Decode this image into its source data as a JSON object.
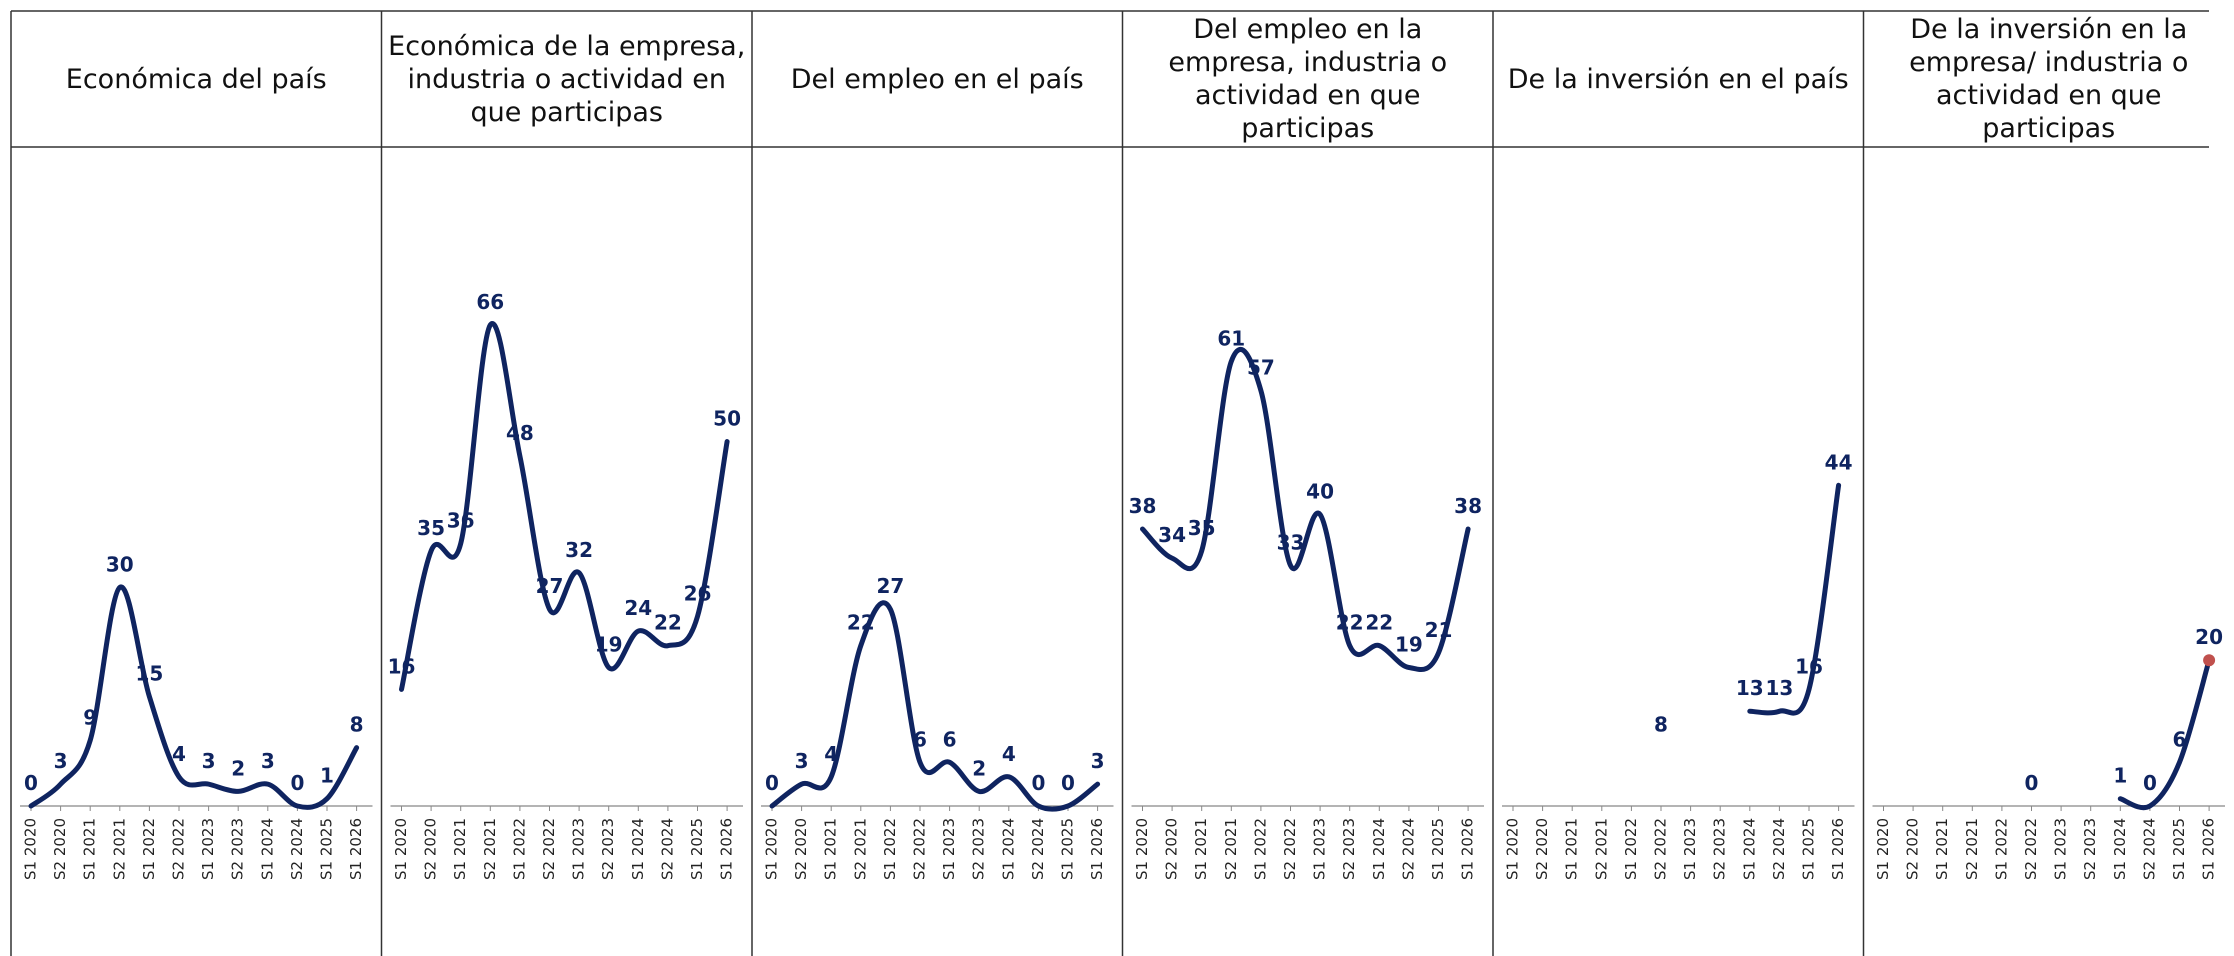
{
  "chart_data": [
    {
      "type": "line",
      "title": "Económica del país",
      "categories": [
        "S1 2020",
        "S2 2020",
        "S1 2021",
        "S2 2021",
        "S1 2022",
        "S2 2022",
        "S1 2023",
        "S2 2023",
        "S1 2024",
        "S2 2024",
        "S1 2025",
        "S1 2026"
      ],
      "values": [
        0,
        3,
        9,
        30,
        15,
        4,
        3,
        2,
        3,
        0,
        1,
        8
      ],
      "color": "#0f2460",
      "ylim": [
        0,
        90
      ]
    },
    {
      "type": "line",
      "title": "Económica de la empresa, industria o actividad en que participas",
      "categories": [
        "S1 2020",
        "S2 2020",
        "S1 2021",
        "S2 2021",
        "S1 2022",
        "S2 2022",
        "S1 2023",
        "S2 2023",
        "S1 2024",
        "S2 2024",
        "S1 2025",
        "S1 2026"
      ],
      "values": [
        16,
        35,
        36,
        66,
        48,
        27,
        32,
        19,
        24,
        22,
        26,
        50
      ],
      "color": "#0f2460",
      "ylim": [
        0,
        90
      ]
    },
    {
      "type": "line",
      "title": "Del empleo en el país",
      "categories": [
        "S1 2020",
        "S2 2020",
        "S1 2021",
        "S2 2021",
        "S1 2022",
        "S2 2022",
        "S1 2023",
        "S2 2023",
        "S1 2024",
        "S2 2024",
        "S1 2025",
        "S1 2026"
      ],
      "values": [
        0,
        3,
        4,
        22,
        27,
        6,
        6,
        2,
        4,
        0,
        0,
        3
      ],
      "color": "#0f2460",
      "ylim": [
        0,
        90
      ]
    },
    {
      "type": "line",
      "title": "Del empleo en la empresa, industria o actividad en que participas",
      "categories": [
        "S1 2020",
        "S2 2020",
        "S1 2021",
        "S2 2021",
        "S1 2022",
        "S2 2022",
        "S1 2023",
        "S2 2023",
        "S1 2024",
        "S2 2024",
        "S1 2025",
        "S1 2026"
      ],
      "values": [
        38,
        34,
        35,
        61,
        57,
        33,
        40,
        22,
        22,
        19,
        21,
        38
      ],
      "color": "#0f2460",
      "ylim": [
        0,
        90
      ]
    },
    {
      "type": "line",
      "title": "De la inversión en el país",
      "categories": [
        "S1 2020",
        "S2 2020",
        "S1 2021",
        "S2 2021",
        "S1 2022",
        "S2 2022",
        "S1 2023",
        "S2 2023",
        "S1 2024",
        "S2 2024",
        "S1 2025",
        "S1 2026"
      ],
      "values": [
        null,
        null,
        null,
        null,
        null,
        8,
        null,
        null,
        13,
        13,
        16,
        44
      ],
      "color": "#0f2460",
      "ylim": [
        0,
        90
      ]
    },
    {
      "type": "line",
      "title": "De la inversión en la empresa/ industria o actividad en que participas",
      "categories": [
        "S1 2020",
        "S2 2020",
        "S1 2021",
        "S2 2021",
        "S1 2022",
        "S2 2022",
        "S1 2023",
        "S2 2023",
        "S1 2024",
        "S2 2024",
        "S1 2025",
        "S1 2026"
      ],
      "values": [
        null,
        null,
        null,
        null,
        null,
        0,
        null,
        null,
        1,
        0,
        6,
        20
      ],
      "color": "#0f2460",
      "ylim": [
        0,
        90
      ],
      "highlight": {
        "index": 11,
        "color": "#c0504d"
      }
    }
  ]
}
